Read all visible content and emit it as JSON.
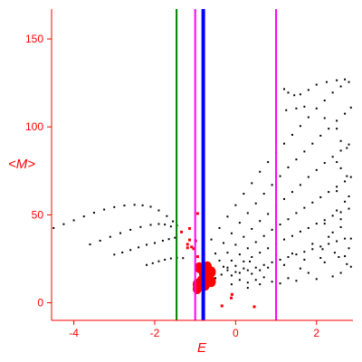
{
  "chart_data": {
    "type": "scatter",
    "xlabel": "E",
    "ylabel": "<M>",
    "xlim": [
      -4.55,
      2.9
    ],
    "ylim": [
      -10,
      167
    ],
    "x_ticks": [
      -4,
      -2,
      0,
      2
    ],
    "x_tick_labels": [
      "-4",
      "-2",
      "0",
      "2"
    ],
    "y_ticks": [
      0,
      50,
      100,
      150
    ],
    "y_tick_labels": [
      "0",
      "50",
      "100",
      "150"
    ],
    "grid": false,
    "colors": {
      "axes": "#ff0000",
      "green_line": "#007f00",
      "magenta_line": "#ff00ff",
      "blue_line": "#0000ff",
      "points": "#000000",
      "highlight_points": "#ff0000"
    },
    "vertical_lines": [
      {
        "x": -1.46,
        "color": "#007f00",
        "weight": "thin"
      },
      {
        "x": -1.0,
        "color": "#ff00ff",
        "weight": "thin"
      },
      {
        "x": 1.0,
        "color": "#ff00ff",
        "weight": "thin"
      },
      {
        "x": -0.8,
        "color": "#0000ff",
        "weight": "thick"
      }
    ],
    "series": [
      {
        "color": "#000000",
        "points": [
          [
            -4.5,
            42.5
          ],
          [
            -4.25,
            44.7
          ],
          [
            -4.0,
            46.9
          ],
          [
            -3.75,
            49.1
          ],
          [
            -3.5,
            51.2
          ],
          [
            -3.25,
            53.0
          ],
          [
            -3.0,
            54.4
          ],
          [
            -2.75,
            55.3
          ],
          [
            -2.5,
            55.7
          ],
          [
            -2.3,
            55.4
          ],
          [
            -2.1,
            54.6
          ],
          [
            -1.9,
            52.5
          ],
          [
            -1.7,
            49.3
          ],
          [
            -1.55,
            46.3
          ],
          [
            -1.45,
            44.0
          ]
        ]
      },
      {
        "color": "#000000",
        "points": [
          [
            -3.6,
            33.2
          ],
          [
            -3.35,
            35.3
          ],
          [
            -3.1,
            37.5
          ],
          [
            -2.85,
            39.6
          ],
          [
            -2.6,
            41.5
          ],
          [
            -2.35,
            43.1
          ],
          [
            -2.1,
            44.3
          ],
          [
            -1.9,
            44.8
          ],
          [
            -1.75,
            44.5
          ],
          [
            -1.6,
            43.4
          ]
        ]
      },
      {
        "color": "#000000",
        "points": [
          [
            -3.0,
            27.4
          ],
          [
            -2.8,
            28.6
          ],
          [
            -2.6,
            30.0
          ],
          [
            -2.4,
            31.5
          ],
          [
            -2.2,
            33.0
          ],
          [
            -2.0,
            34.0
          ],
          [
            -1.8,
            35.3
          ],
          [
            -1.65,
            36.2
          ],
          [
            -1.5,
            37.0
          ]
        ]
      },
      {
        "color": "#000000",
        "points": [
          [
            -2.2,
            21.5
          ],
          [
            -2.05,
            22.5
          ],
          [
            -1.9,
            23.6
          ],
          [
            -1.75,
            24.5
          ],
          [
            -1.6,
            25.2
          ],
          [
            -1.45,
            25.6
          ],
          [
            -1.3,
            25.4
          ]
        ]
      },
      {
        "color": "#000000",
        "points": [
          [
            -0.6,
            36.0
          ],
          [
            -0.4,
            42.5
          ],
          [
            -0.2,
            49.0
          ],
          [
            0.0,
            55.5
          ],
          [
            0.2,
            62.0
          ],
          [
            0.4,
            68.0
          ],
          [
            0.6,
            74.5
          ],
          [
            0.8,
            80.0
          ],
          [
            1.0,
            85.5
          ],
          [
            1.2,
            90.5
          ],
          [
            1.4,
            95.5
          ],
          [
            1.6,
            100.5
          ],
          [
            1.8,
            105.5
          ],
          [
            2.0,
            110.5
          ],
          [
            2.2,
            115.0
          ],
          [
            2.4,
            119.5
          ],
          [
            2.6,
            123.0
          ],
          [
            2.8,
            125.5
          ]
        ]
      },
      {
        "color": "#000000",
        "points": [
          [
            -0.5,
            28.0
          ],
          [
            -0.3,
            34.0
          ],
          [
            -0.1,
            39.5
          ],
          [
            0.1,
            45.5
          ],
          [
            0.3,
            51.0
          ],
          [
            0.5,
            56.5
          ],
          [
            0.7,
            62.0
          ],
          [
            0.9,
            67.0
          ],
          [
            1.1,
            72.0
          ],
          [
            1.3,
            77.0
          ],
          [
            1.5,
            81.5
          ],
          [
            1.7,
            86.0
          ],
          [
            1.9,
            90.5
          ],
          [
            2.1,
            95.0
          ],
          [
            2.3,
            99.0
          ],
          [
            2.5,
            103.5
          ],
          [
            2.7,
            107.5
          ],
          [
            2.85,
            111.0
          ]
        ]
      },
      {
        "color": "#000000",
        "points": [
          [
            -0.4,
            24.0
          ],
          [
            -0.2,
            28.5
          ],
          [
            0.0,
            33.0
          ],
          [
            0.2,
            37.5
          ],
          [
            0.4,
            42.0
          ],
          [
            0.6,
            46.5
          ],
          [
            0.8,
            50.5
          ],
          [
            1.0,
            55.0
          ],
          [
            1.2,
            59.0
          ],
          [
            1.4,
            63.0
          ],
          [
            1.6,
            67.0
          ],
          [
            1.8,
            71.5
          ],
          [
            2.0,
            75.5
          ],
          [
            2.2,
            79.5
          ],
          [
            2.4,
            83.0
          ],
          [
            2.6,
            86.5
          ],
          [
            2.8,
            90.0
          ]
        ]
      },
      {
        "color": "#000000",
        "points": [
          [
            -0.3,
            20.5
          ],
          [
            -0.1,
            24.0
          ],
          [
            0.1,
            27.5
          ],
          [
            0.3,
            31.0
          ],
          [
            0.5,
            34.5
          ],
          [
            0.7,
            38.0
          ],
          [
            0.9,
            41.5
          ],
          [
            1.1,
            44.5
          ],
          [
            1.3,
            47.5
          ],
          [
            1.5,
            51.0
          ],
          [
            1.7,
            54.0
          ],
          [
            1.9,
            57.0
          ],
          [
            2.1,
            60.0
          ],
          [
            2.3,
            63.0
          ],
          [
            2.5,
            66.0
          ],
          [
            2.7,
            69.0
          ],
          [
            2.85,
            71.5
          ]
        ]
      },
      {
        "color": "#000000",
        "points": [
          [
            -0.2,
            18.5
          ],
          [
            0.0,
            21.0
          ],
          [
            0.2,
            23.5
          ],
          [
            0.4,
            26.0
          ],
          [
            0.6,
            28.5
          ],
          [
            0.8,
            31.0
          ],
          [
            1.0,
            33.5
          ],
          [
            1.2,
            36.0
          ],
          [
            1.4,
            38.0
          ],
          [
            1.6,
            40.5
          ],
          [
            1.8,
            42.5
          ],
          [
            2.0,
            45.0
          ],
          [
            2.2,
            47.0
          ],
          [
            2.4,
            49.5
          ],
          [
            2.6,
            51.5
          ],
          [
            2.8,
            53.5
          ]
        ]
      },
      {
        "color": "#000000",
        "points": [
          [
            -0.1,
            15.5
          ],
          [
            0.1,
            17.0
          ],
          [
            0.3,
            18.5
          ],
          [
            0.5,
            20.0
          ],
          [
            0.7,
            21.5
          ],
          [
            0.9,
            23.0
          ],
          [
            1.1,
            24.5
          ],
          [
            1.3,
            26.0
          ],
          [
            1.5,
            27.5
          ],
          [
            1.7,
            29.0
          ],
          [
            1.9,
            30.5
          ],
          [
            2.1,
            32.0
          ],
          [
            2.3,
            33.5
          ],
          [
            2.5,
            35.0
          ],
          [
            2.7,
            36.5
          ]
        ]
      },
      {
        "color": "#000000",
        "points": [
          [
            1.2,
            121.5
          ],
          [
            1.3,
            119.5
          ],
          [
            1.45,
            118.0
          ],
          [
            1.6,
            118.5
          ],
          [
            1.8,
            121.0
          ],
          [
            2.0,
            124.0
          ],
          [
            2.25,
            125.5
          ],
          [
            2.5,
            126.5
          ],
          [
            2.7,
            127.0
          ],
          [
            1.25,
            109.5
          ],
          [
            1.5,
            110.5
          ],
          [
            1.7,
            111.5
          ],
          [
            2.2,
            105.0
          ],
          [
            2.5,
            99.0
          ],
          [
            2.6,
            92.0
          ],
          [
            2.75,
            88.0
          ],
          [
            2.5,
            80.0
          ],
          [
            2.6,
            76.5
          ],
          [
            2.75,
            72.0
          ],
          [
            2.5,
            63.5
          ],
          [
            2.7,
            57.5
          ],
          [
            2.8,
            60.5
          ],
          [
            2.5,
            52.5
          ],
          [
            2.2,
            45.0
          ],
          [
            2.6,
            43.0
          ],
          [
            2.4,
            40.0
          ],
          [
            1.9,
            33.5
          ],
          [
            2.15,
            30.5
          ],
          [
            2.55,
            26.0
          ],
          [
            2.75,
            22.0
          ],
          [
            1.8,
            17.0
          ],
          [
            2.4,
            15.0
          ],
          [
            2.0,
            13.5
          ],
          [
            1.5,
            12.5
          ],
          [
            1.3,
            14.0
          ],
          [
            1.1,
            11.0
          ],
          [
            0.9,
            12.0
          ],
          [
            0.7,
            14.5
          ],
          [
            0.5,
            13.0
          ],
          [
            0.3,
            11.5
          ],
          [
            0.1,
            13.0
          ],
          [
            0.0,
            17.5
          ],
          [
            0.2,
            19.5
          ],
          [
            0.4,
            16.5
          ],
          [
            0.6,
            18.5
          ],
          [
            0.8,
            20.0
          ],
          [
            1.2,
            21.5
          ],
          [
            1.6,
            19.5
          ],
          [
            2.2,
            23.0
          ],
          [
            2.6,
            17.0
          ],
          [
            2.85,
            20.5
          ],
          [
            2.7,
            26.5
          ],
          [
            2.1,
            25.5
          ],
          [
            1.4,
            28.0
          ],
          [
            1.0,
            27.0
          ],
          [
            0.35,
            23.5
          ],
          [
            -0.2,
            20.0
          ],
          [
            -0.35,
            16.0
          ],
          [
            -0.1,
            10.5
          ],
          [
            0.3,
            8.5
          ],
          [
            0.6,
            10.5
          ],
          [
            1.7,
            24.5
          ],
          [
            2.45,
            28.5
          ],
          [
            2.8,
            31.0
          ],
          [
            2.3,
            37.5
          ],
          [
            2.6,
            47.5
          ],
          [
            2.85,
            36.5
          ],
          [
            -0.5,
            14.0
          ],
          [
            -0.65,
            16.5
          ],
          [
            -0.55,
            19.5
          ]
        ]
      },
      {
        "color": "#ff0000",
        "points": [
          [
            -0.95,
            51.0
          ],
          [
            -1.15,
            42.5
          ],
          [
            -1.35,
            40.5
          ],
          [
            -1.15,
            36.0
          ],
          [
            -1.0,
            35.5
          ],
          [
            -1.2,
            33.5
          ],
          [
            -1.1,
            32.0
          ],
          [
            -1.2,
            31.5
          ],
          [
            -1.05,
            31.0
          ],
          [
            -0.95,
            26.5
          ],
          [
            -0.8,
            27.5
          ],
          [
            -0.95,
            21.5
          ],
          [
            -0.9,
            19.0
          ],
          [
            -0.8,
            22.0
          ],
          [
            -0.1,
            5.0
          ],
          [
            -0.12,
            3.0
          ],
          [
            0.45,
            -2.0
          ],
          [
            -0.35,
            -1.5
          ]
        ]
      },
      {
        "color": "#ff0000",
        "points": [
          [
            -0.9,
            20.0
          ],
          [
            -0.8,
            17.0
          ],
          [
            -0.7,
            15.5
          ],
          [
            -0.85,
            12.5
          ],
          [
            -0.75,
            10.0
          ],
          [
            -0.95,
            10.5
          ],
          [
            -0.7,
            20.5
          ],
          [
            -0.6,
            12.0
          ],
          [
            -0.95,
            8.0
          ],
          [
            -0.6,
            17.5
          ]
        ],
        "size": "large"
      }
    ]
  }
}
